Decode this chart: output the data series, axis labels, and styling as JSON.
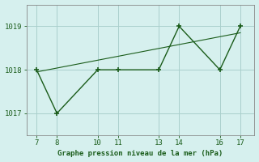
{
  "x": [
    7,
    8,
    10,
    11,
    13,
    14,
    16,
    17
  ],
  "y": [
    1018.0,
    1017.0,
    1018.0,
    1018.0,
    1018.0,
    1019.0,
    1018.0,
    1019.0
  ],
  "trend_x": [
    7,
    17
  ],
  "trend_y": [
    1017.95,
    1018.85
  ],
  "line_color": "#1a5c1a",
  "marker_color": "#1a5c1a",
  "bg_color": "#d6f0ee",
  "grid_color": "#aacfcc",
  "xlabel": "Graphe pression niveau de la mer (hPa)",
  "xlabel_color": "#1a5c1a",
  "tick_color": "#1a5c1a",
  "spine_color": "#888888",
  "ylim": [
    1016.5,
    1019.5
  ],
  "yticks": [
    1017,
    1018,
    1019
  ],
  "xticks": [
    7,
    8,
    10,
    11,
    13,
    14,
    16,
    17
  ],
  "xlim": [
    6.5,
    17.7
  ]
}
